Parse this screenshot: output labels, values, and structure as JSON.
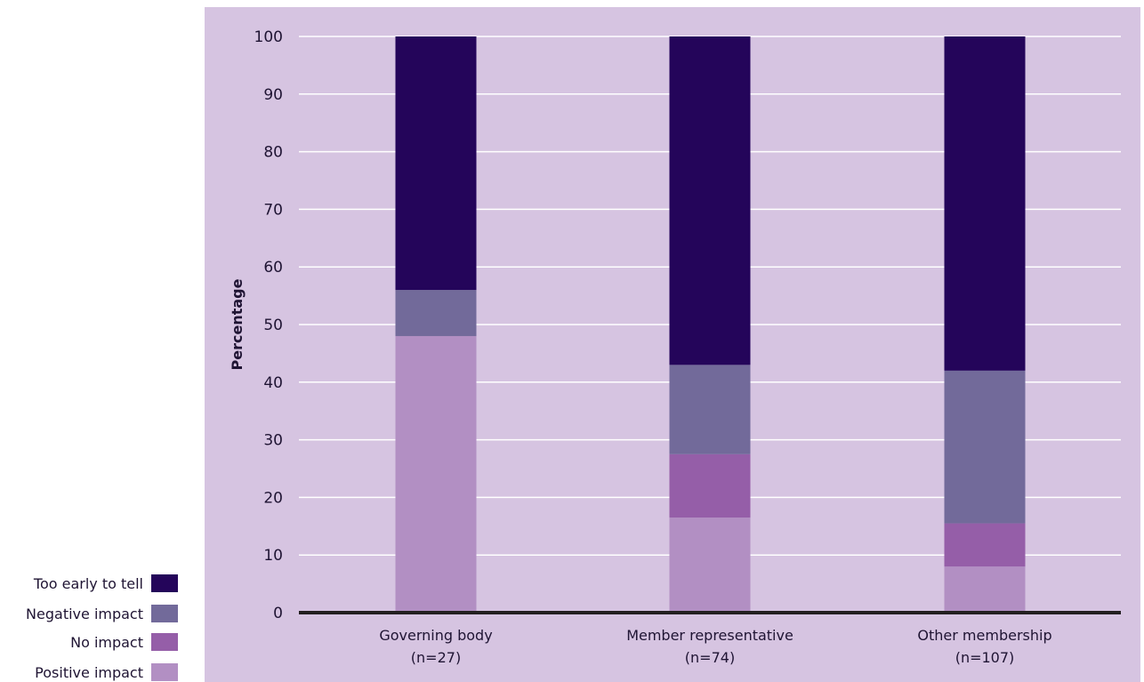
{
  "chart_data": {
    "type": "bar",
    "stacked": true,
    "categories": [
      "Governing body\n(n=27)",
      "Member representative\n(n=74)",
      "Other membership\n(n=107)"
    ],
    "category_lines": [
      [
        "Governing body",
        "(n=27)"
      ],
      [
        "Member representative",
        "(n=74)"
      ],
      [
        "Other membership",
        "(n=107)"
      ]
    ],
    "series": [
      {
        "name": "Positive impact",
        "color": "#b28fc3",
        "values": [
          48,
          16.5,
          8
        ]
      },
      {
        "name": "No impact",
        "color": "#955ea8",
        "values": [
          0,
          11,
          7.5
        ]
      },
      {
        "name": "Negative impact",
        "color": "#726a9a",
        "values": [
          8,
          15.5,
          26.5
        ]
      },
      {
        "name": "Too early to tell",
        "color": "#24055a",
        "values": [
          44,
          57,
          58
        ]
      }
    ],
    "legend_order": [
      "Too early to tell",
      "Negative impact",
      "No impact",
      "Positive impact"
    ],
    "legend_position": "bottom-left",
    "xlabel": "",
    "ylabel": "Percentage",
    "ylim": [
      0,
      100
    ],
    "yticks": [
      0,
      10,
      20,
      30,
      40,
      50,
      60,
      70,
      80,
      90,
      100
    ],
    "grid": true,
    "colors": {
      "plot_background": "#d6c4e1",
      "gridline": "#ffffff",
      "axis": "#231f20"
    }
  }
}
